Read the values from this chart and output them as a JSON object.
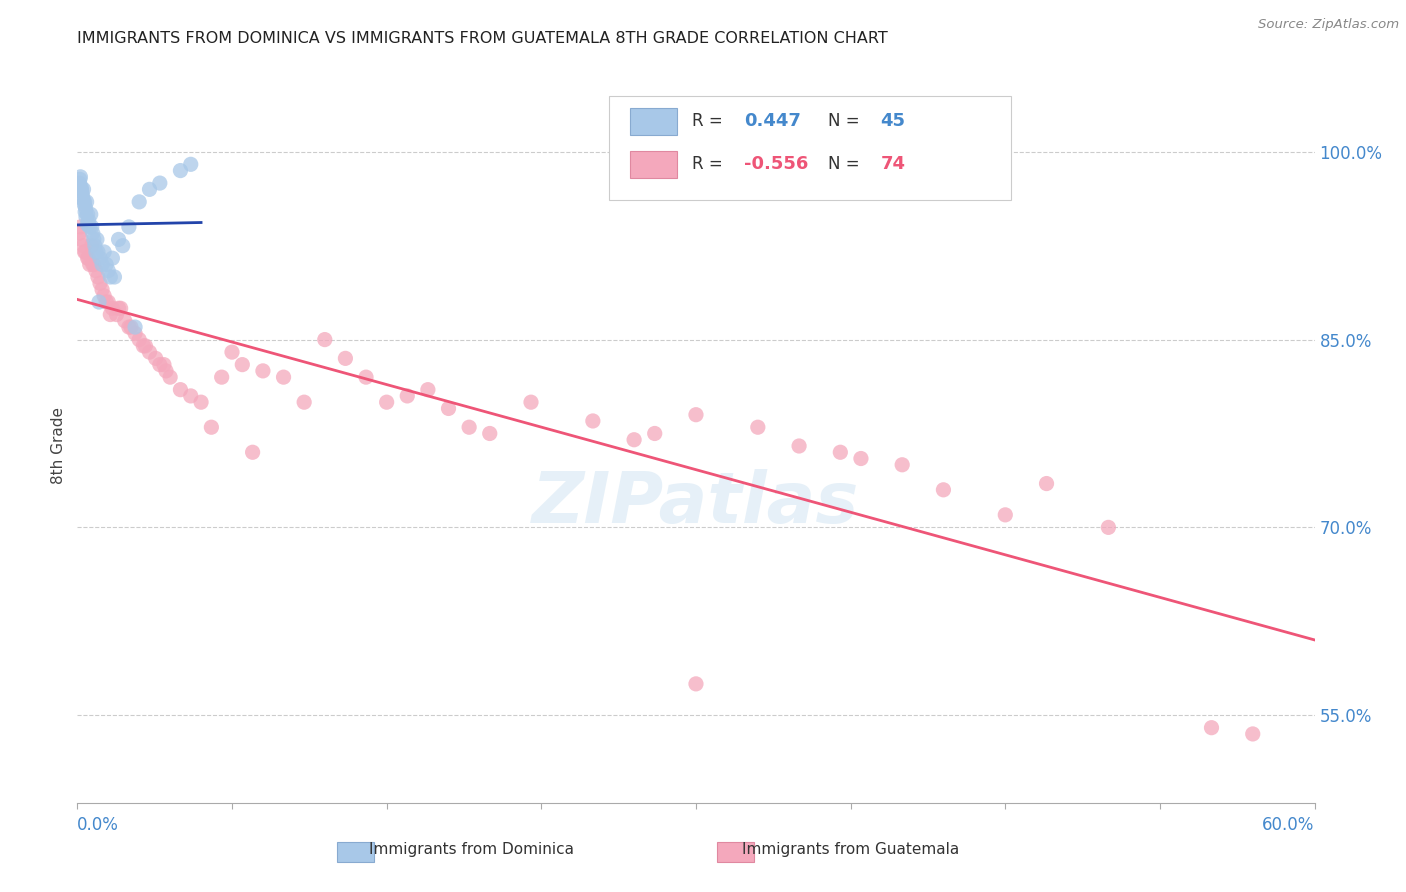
{
  "title": "IMMIGRANTS FROM DOMINICA VS IMMIGRANTS FROM GUATEMALA 8TH GRADE CORRELATION CHART",
  "source": "Source: ZipAtlas.com",
  "ylabel": "8th Grade",
  "xlim": [
    0.0,
    60.0
  ],
  "ylim": [
    48.0,
    105.0
  ],
  "ytick_vals": [
    55.0,
    70.0,
    85.0,
    100.0
  ],
  "ytick_labels": [
    "55.0%",
    "70.0%",
    "85.0%",
    "100.0%"
  ],
  "watermark": "ZIPatlas",
  "blue_color": "#a8c8e8",
  "pink_color": "#f4a8bc",
  "blue_line_color": "#2244aa",
  "pink_line_color": "#ee5577",
  "blue_scatter_x": [
    0.1,
    0.15,
    0.2,
    0.25,
    0.3,
    0.35,
    0.4,
    0.45,
    0.5,
    0.55,
    0.6,
    0.65,
    0.7,
    0.75,
    0.8,
    0.85,
    0.9,
    0.95,
    1.0,
    1.1,
    1.2,
    1.3,
    1.4,
    1.5,
    1.6,
    1.7,
    1.8,
    2.0,
    2.2,
    2.5,
    3.0,
    3.5,
    4.0,
    5.0,
    5.5,
    0.12,
    0.18,
    0.22,
    0.28,
    0.33,
    0.38,
    0.42,
    0.48,
    1.05,
    2.8
  ],
  "blue_scatter_y": [
    97.5,
    98.0,
    97.0,
    96.5,
    97.0,
    96.0,
    95.5,
    96.0,
    95.0,
    94.5,
    94.0,
    95.0,
    94.0,
    93.5,
    93.0,
    92.5,
    92.0,
    93.0,
    92.0,
    91.5,
    91.0,
    92.0,
    91.0,
    90.5,
    90.0,
    91.5,
    90.0,
    93.0,
    92.5,
    94.0,
    96.0,
    97.0,
    97.5,
    98.5,
    99.0,
    97.8,
    97.2,
    96.8,
    96.2,
    95.8,
    95.2,
    94.8,
    94.2,
    88.0,
    86.0
  ],
  "pink_scatter_x": [
    0.1,
    0.2,
    0.3,
    0.4,
    0.5,
    0.6,
    0.7,
    0.8,
    0.9,
    1.0,
    1.1,
    1.2,
    1.3,
    1.5,
    1.7,
    1.9,
    2.1,
    2.3,
    2.5,
    2.8,
    3.0,
    3.2,
    3.5,
    3.8,
    4.0,
    4.3,
    4.5,
    5.0,
    5.5,
    6.0,
    7.0,
    7.5,
    8.0,
    9.0,
    10.0,
    11.0,
    12.0,
    13.0,
    14.0,
    15.0,
    16.0,
    17.0,
    18.0,
    19.0,
    20.0,
    22.0,
    25.0,
    27.0,
    28.0,
    30.0,
    33.0,
    35.0,
    37.0,
    38.0,
    40.0,
    42.0,
    45.0,
    47.0,
    50.0,
    55.0,
    0.15,
    0.35,
    0.55,
    0.75,
    1.4,
    1.6,
    2.0,
    2.6,
    3.3,
    4.2,
    6.5,
    8.5,
    30.0,
    57.0
  ],
  "pink_scatter_y": [
    93.5,
    93.0,
    92.5,
    92.0,
    91.5,
    91.0,
    92.5,
    91.0,
    90.5,
    90.0,
    89.5,
    89.0,
    88.5,
    88.0,
    87.5,
    87.0,
    87.5,
    86.5,
    86.0,
    85.5,
    85.0,
    84.5,
    84.0,
    83.5,
    83.0,
    82.5,
    82.0,
    81.0,
    80.5,
    80.0,
    82.0,
    84.0,
    83.0,
    82.5,
    82.0,
    80.0,
    85.0,
    83.5,
    82.0,
    80.0,
    80.5,
    81.0,
    79.5,
    78.0,
    77.5,
    80.0,
    78.5,
    77.0,
    77.5,
    79.0,
    78.0,
    76.5,
    76.0,
    75.5,
    75.0,
    73.0,
    71.0,
    73.5,
    70.0,
    54.0,
    94.0,
    92.0,
    91.5,
    91.0,
    88.0,
    87.0,
    87.5,
    86.0,
    84.5,
    83.0,
    78.0,
    76.0,
    57.5,
    53.5
  ]
}
